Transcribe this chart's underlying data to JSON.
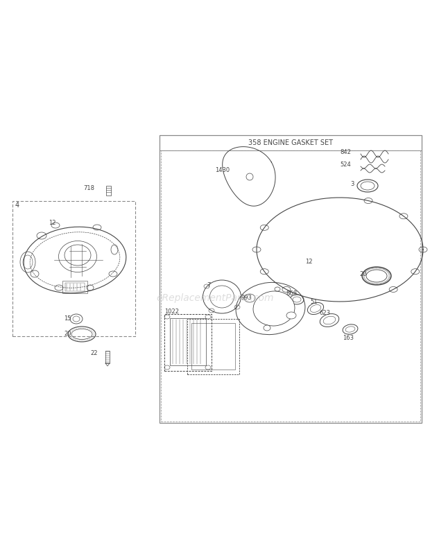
{
  "bg_color": "#ffffff",
  "title": "358 ENGINE GASKET SET",
  "watermark": "eReplacementParts.com",
  "line_color": "#444444",
  "light_gray": "#888888"
}
